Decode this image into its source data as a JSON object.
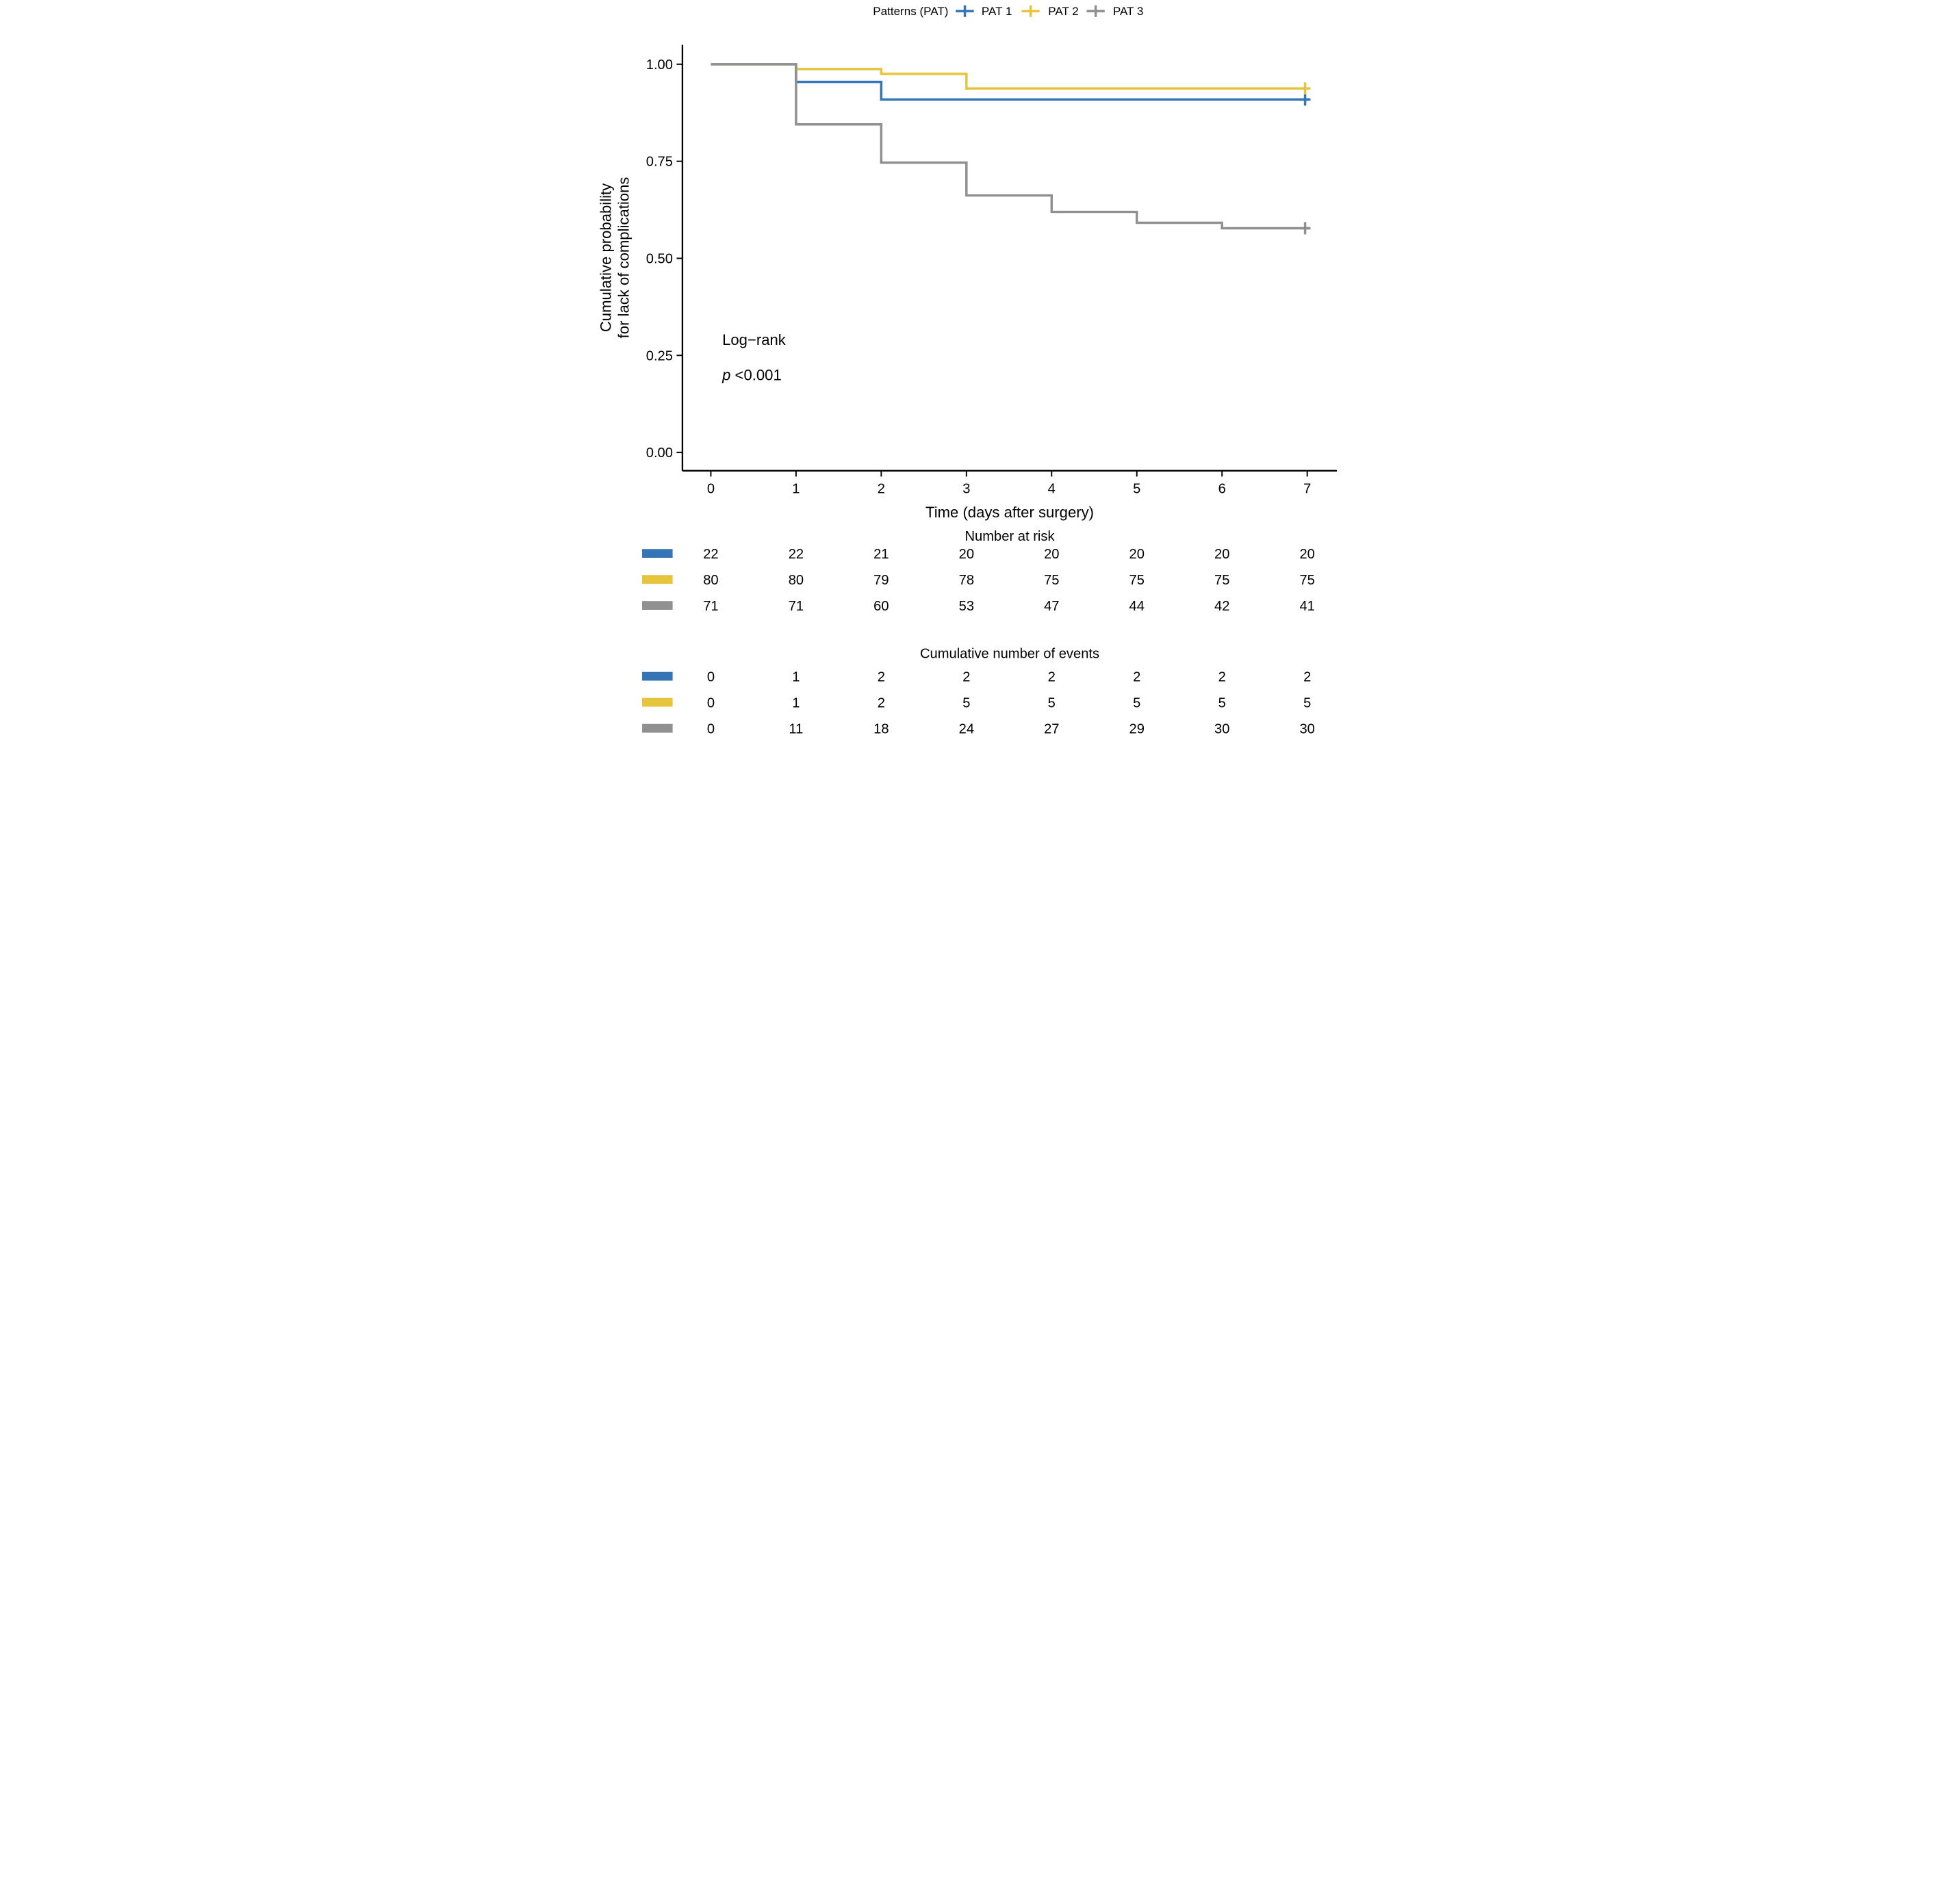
{
  "chart_data": {
    "type": "line",
    "variant": "kaplan_meier_step",
    "title": "",
    "xlabel": "Time (days after surgery)",
    "ylabel_lines": [
      "Cumulative probability",
      "for lack of complications"
    ],
    "xlim": [
      0,
      7
    ],
    "ylim": [
      0,
      1
    ],
    "grid": false,
    "legend": {
      "title": "Patterns (PAT)",
      "position": "top",
      "entries": [
        {
          "label": "PAT 1",
          "color": "#3575B6"
        },
        {
          "label": "PAT 2",
          "color": "#E6C43C"
        },
        {
          "label": "PAT 3",
          "color": "#909090"
        }
      ]
    },
    "xticks": [
      "0",
      "1",
      "2",
      "3",
      "4",
      "5",
      "6",
      "7"
    ],
    "yticks": [
      {
        "value": 1.0,
        "label": "1.00"
      },
      {
        "value": 0.75,
        "label": "0.75"
      },
      {
        "value": 0.5,
        "label": "0.50"
      },
      {
        "value": 0.25,
        "label": "0.25"
      },
      {
        "value": 0.0,
        "label": "0.00"
      }
    ],
    "annotation": {
      "line1": "Log−rank",
      "p_italic": "p",
      "p_text": " <0.001"
    },
    "series": [
      {
        "name": "PAT 1",
        "color": "#3575B6",
        "draw_order": 1,
        "steps": [
          [
            0,
            1.0
          ],
          [
            1,
            0.9545
          ],
          [
            2,
            0.9091
          ]
        ],
        "end_x": 7,
        "censored_at_end": true
      },
      {
        "name": "PAT 2",
        "color": "#E6C43C",
        "draw_order": 2,
        "steps": [
          [
            0,
            1.0
          ],
          [
            1,
            0.9875
          ],
          [
            2,
            0.975
          ],
          [
            3,
            0.9375
          ]
        ],
        "end_x": 7,
        "censored_at_end": true
      },
      {
        "name": "PAT 3",
        "color": "#909090",
        "draw_order": 3,
        "steps": [
          [
            0,
            1.0
          ],
          [
            1,
            0.845
          ],
          [
            2,
            0.7465
          ],
          [
            3,
            0.662
          ],
          [
            4,
            0.6197
          ],
          [
            5,
            0.5915
          ],
          [
            6,
            0.5775
          ]
        ],
        "end_x": 7,
        "censored_at_end": true
      }
    ],
    "tables": [
      {
        "title": "Number at risk",
        "rows": [
          {
            "series": "PAT 1",
            "color": "#3575B6",
            "values": [
              "22",
              "22",
              "21",
              "20",
              "20",
              "20",
              "20",
              "20"
            ]
          },
          {
            "series": "PAT 2",
            "color": "#E6C43C",
            "values": [
              "80",
              "80",
              "79",
              "78",
              "75",
              "75",
              "75",
              "75"
            ]
          },
          {
            "series": "PAT 3",
            "color": "#909090",
            "values": [
              "71",
              "71",
              "60",
              "53",
              "47",
              "44",
              "42",
              "41"
            ]
          }
        ]
      },
      {
        "title": "Cumulative number of events",
        "rows": [
          {
            "series": "PAT 1",
            "color": "#3575B6",
            "values": [
              "0",
              "1",
              "2",
              "2",
              "2",
              "2",
              "2",
              "2"
            ]
          },
          {
            "series": "PAT 2",
            "color": "#E6C43C",
            "values": [
              "0",
              "1",
              "2",
              "5",
              "5",
              "5",
              "5",
              "5"
            ]
          },
          {
            "series": "PAT 3",
            "color": "#909090",
            "values": [
              "0",
              "11",
              "18",
              "24",
              "27",
              "29",
              "30",
              "30"
            ]
          }
        ]
      }
    ]
  }
}
